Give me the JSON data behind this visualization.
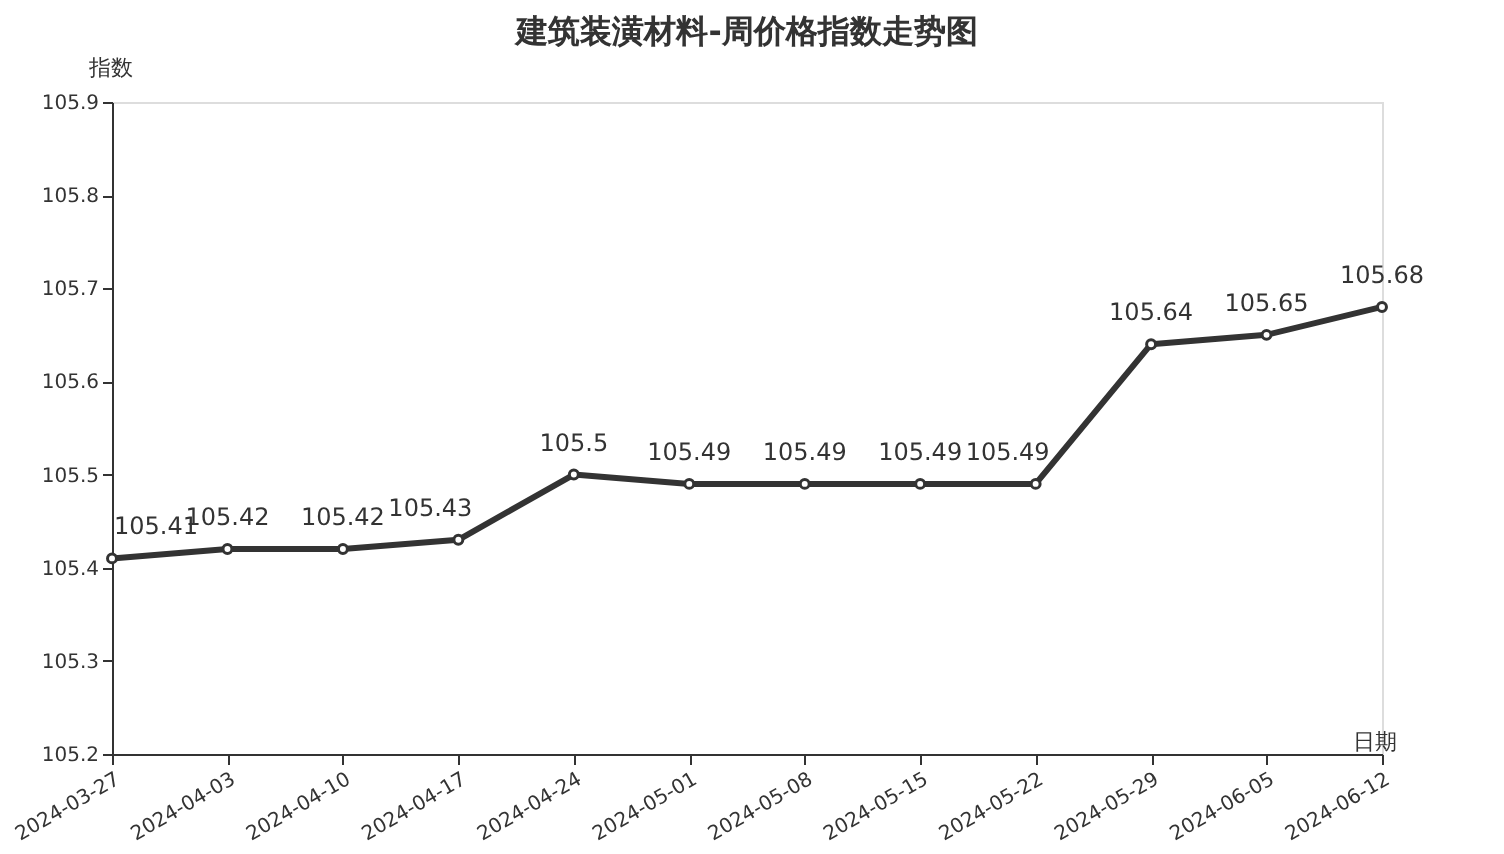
{
  "chart_data": {
    "type": "line",
    "title": "建筑装潢材料-周价格指数走势图",
    "xlabel": "日期",
    "ylabel": "指数",
    "categories": [
      "2024-03-27",
      "2024-04-03",
      "2024-04-10",
      "2024-04-17",
      "2024-04-24",
      "2024-05-01",
      "2024-05-08",
      "2024-05-15",
      "2024-05-22",
      "2024-05-29",
      "2024-06-05",
      "2024-06-12"
    ],
    "series": [
      {
        "color": "#333333",
        "values": [
          105.41,
          105.42,
          105.42,
          105.43,
          105.5,
          105.49,
          105.49,
          105.49,
          105.49,
          105.64,
          105.65,
          105.68
        ]
      }
    ],
    "ylim": [
      105.2,
      105.9
    ],
    "yticks": [
      105.2,
      105.3,
      105.4,
      105.5,
      105.6,
      105.7,
      105.8,
      105.9
    ],
    "grid": false,
    "marker": "circle",
    "line_style": "solid",
    "data_labels": true
  }
}
